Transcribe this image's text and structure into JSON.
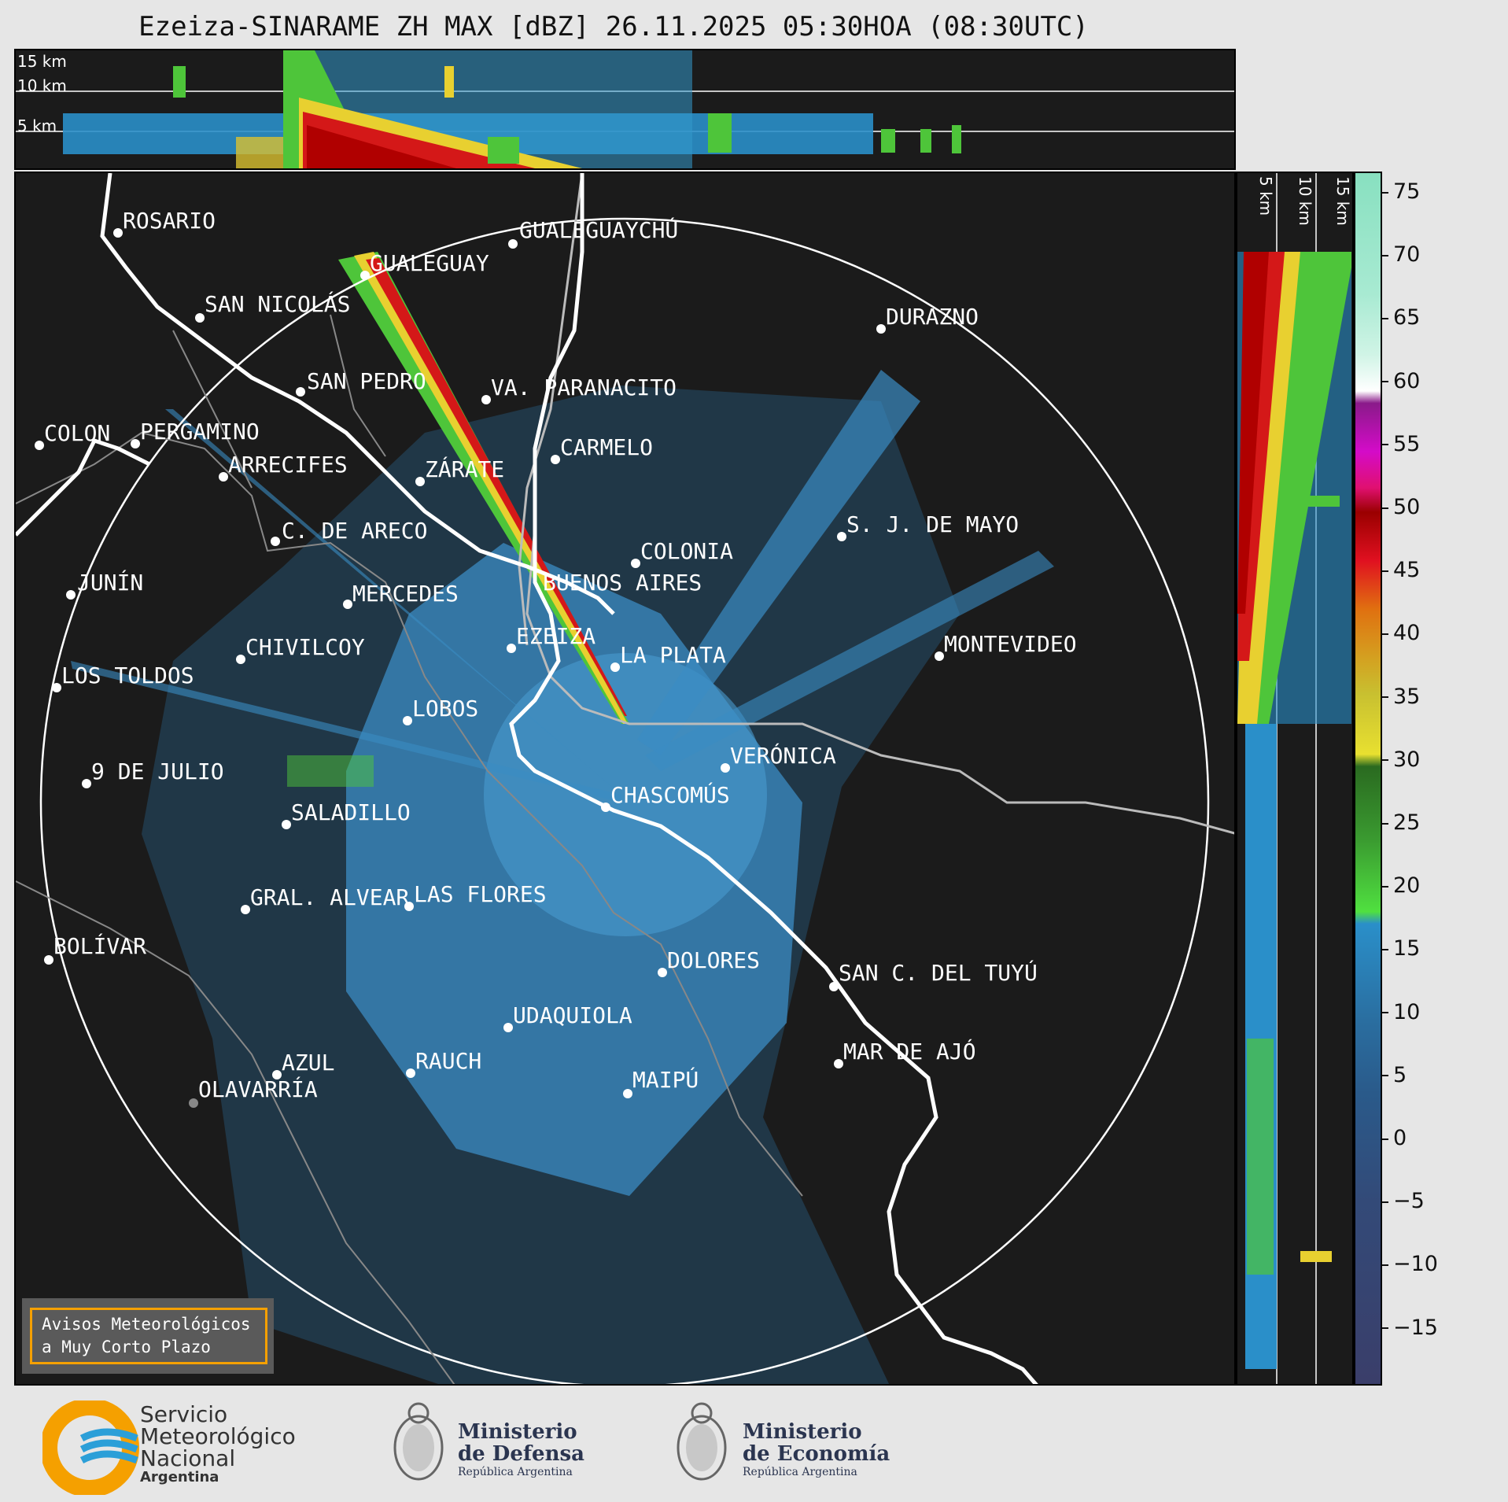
{
  "title": "Ezeiza-SINARAME ZH MAX [dBZ] 26.11.2025 05:30HOA (08:30UTC)",
  "top_panel": {
    "height_labels": [
      "15 km",
      "10 km",
      "5 km"
    ]
  },
  "side_panel": {
    "height_labels": [
      "5 km",
      "10 km",
      "15 km"
    ]
  },
  "colorbar": {
    "unit": "dBZ",
    "ticks": [
      "75",
      "70",
      "65",
      "60",
      "55",
      "50",
      "45",
      "40",
      "35",
      "30",
      "25",
      "20",
      "15",
      "10",
      "5",
      "0",
      "−5",
      "−10",
      "−15"
    ]
  },
  "map": {
    "radar_site": "EZEIZA",
    "cities": [
      {
        "name": "ROSARIO"
      },
      {
        "name": "GUALEGUAYCHÚ"
      },
      {
        "name": "GUALEGUAY"
      },
      {
        "name": "SAN NICOLÁS"
      },
      {
        "name": "DURAZNO"
      },
      {
        "name": "SAN PEDRO"
      },
      {
        "name": "VA. PARANACITO"
      },
      {
        "name": "COLON"
      },
      {
        "name": "PERGAMINO"
      },
      {
        "name": "CARMELO"
      },
      {
        "name": "ARRECIFES"
      },
      {
        "name": "ZÁRATE"
      },
      {
        "name": "S. J. DE MAYO"
      },
      {
        "name": "C. DE ARECO"
      },
      {
        "name": "COLONIA"
      },
      {
        "name": "JUNÍN"
      },
      {
        "name": "BUENOS AIRES"
      },
      {
        "name": "MERCEDES"
      },
      {
        "name": "MONTEVIDEO"
      },
      {
        "name": "EZEIZA"
      },
      {
        "name": "CHIVILCOY"
      },
      {
        "name": "LA PLATA"
      },
      {
        "name": "LOS TOLDOS"
      },
      {
        "name": "LOBOS"
      },
      {
        "name": "VERÓNICA"
      },
      {
        "name": "9 DE JULIO"
      },
      {
        "name": "CHASCOMÚS"
      },
      {
        "name": "SALADILLO"
      },
      {
        "name": "GRAL. ALVEAR"
      },
      {
        "name": "LAS FLORES"
      },
      {
        "name": "BOLÍVAR"
      },
      {
        "name": "DOLORES"
      },
      {
        "name": "SAN C. DEL TUYÚ"
      },
      {
        "name": "UDAQUIOLA"
      },
      {
        "name": "AZUL"
      },
      {
        "name": "RAUCH"
      },
      {
        "name": "OLAVARRÍA"
      },
      {
        "name": "MAR DE AJÓ"
      },
      {
        "name": "MAIPÚ"
      }
    ]
  },
  "warning_box": {
    "line1": "Avisos Meteorológicos",
    "line2": "a Muy Corto Plazo"
  },
  "footer": {
    "smn_line1": "Servicio",
    "smn_line2": "Meteorológico",
    "smn_line3": "Nacional",
    "smn_line4": "Argentina",
    "defensa_line1": "Ministerio",
    "defensa_line2": "de Defensa",
    "defensa_line3": "República Argentina",
    "economia_line1": "Ministerio",
    "economia_line2": "de Economía",
    "economia_line3": "República Argentina"
  },
  "colors": {
    "background": "#1b1b1b",
    "accent_orange": "#f5a000",
    "smn_blue": "#2b9fd8"
  }
}
